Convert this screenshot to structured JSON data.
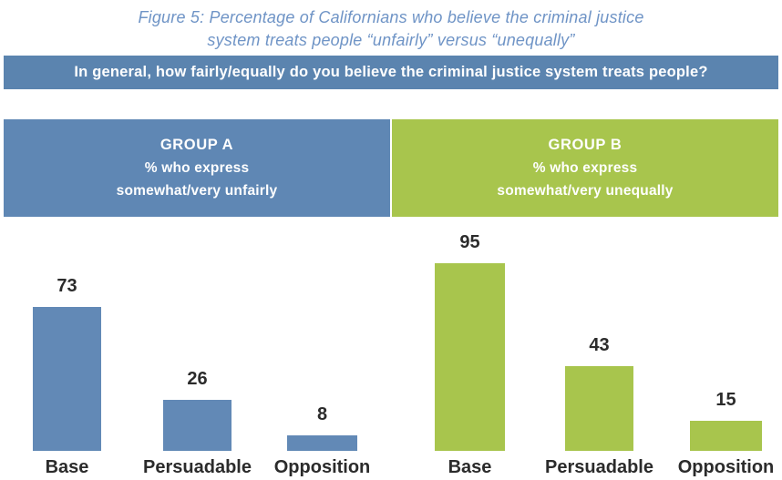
{
  "figure_title": {
    "line1": "Figure 5: Percentage of Californians who believe the criminal justice",
    "line2": "system treats people “unfairly” versus “unequally”"
  },
  "question_banner": {
    "text": "In general, how fairly/equally do you believe the criminal justice system treats people?"
  },
  "group_headers": [
    {
      "name": "GROUP A",
      "subtitle1": "% who express",
      "subtitle2": "somewhat/very unfairly"
    },
    {
      "name": "GROUP B",
      "subtitle1": "% who express",
      "subtitle2": "somewhat/very unequally"
    }
  ],
  "chart_data": {
    "type": "bar",
    "title": "Figure 5: Percentage of Californians who believe the criminal justice system treats people “unfairly” versus “unequally”",
    "categories": [
      "Base",
      "Persuadable",
      "Opposition"
    ],
    "series": [
      {
        "name": "Group A — % who express somewhat/very unfairly",
        "values": [
          73,
          26,
          8
        ],
        "color": "#6289b6"
      },
      {
        "name": "Group B — % who express somewhat/very unequally",
        "values": [
          95,
          43,
          15
        ],
        "color": "#a8c54d"
      }
    ],
    "xlabel": "",
    "ylabel": "",
    "ylim": [
      0,
      100
    ],
    "grid": false,
    "axes_shown": false,
    "value_labels": true,
    "legend_position": "header-bands-above-chart"
  },
  "colors": {
    "title_text": "#6f94c6",
    "banner_bg": "#5b84af",
    "banner_text": "#ffffff",
    "group_a_bg": "#5f87b4",
    "group_b_bg": "#a8c54d",
    "bar_a": "#6289b6",
    "bar_b": "#a8c54d",
    "label_text": "#2b2b2b"
  }
}
